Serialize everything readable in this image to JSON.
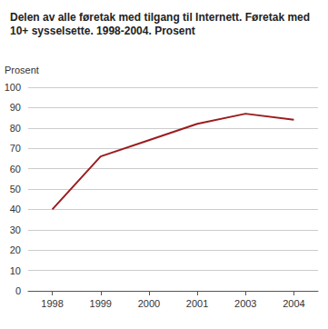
{
  "chart_data": {
    "type": "line",
    "title": "Delen av alle føretak med tilgang til Internett. Føretak med 10+ sysselsette. 1998-2004. Prosent",
    "y_label": "Prosent",
    "categories": [
      "1998",
      "1999",
      "2000",
      "2001",
      "2003",
      "2004"
    ],
    "values": [
      40,
      66,
      74,
      82,
      87,
      84
    ],
    "color": "#9b1c1f",
    "ylim": [
      0,
      100
    ],
    "yticks": [
      0,
      10,
      20,
      30,
      40,
      50,
      60,
      70,
      80,
      90,
      100
    ],
    "grid": true
  }
}
